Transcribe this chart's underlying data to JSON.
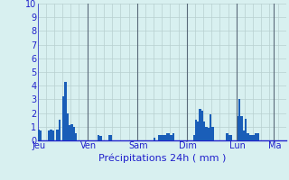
{
  "title": "Précipitations 24h ( mm )",
  "bar_color": "#1a5eb8",
  "background_color": "#d8f0f0",
  "grid_color_h": "#b8d0d0",
  "grid_color_v": "#b8d0d0",
  "day_line_color": "#5a6a7a",
  "axis_color": "#2020cc",
  "text_color": "#2020cc",
  "ylim": [
    0,
    10
  ],
  "yticks": [
    0,
    1,
    2,
    3,
    4,
    5,
    6,
    7,
    8,
    9,
    10
  ],
  "day_labels": [
    "Jeu",
    "Ven",
    "Sam",
    "Dim",
    "Lun",
    "Ma"
  ],
  "day_positions": [
    0,
    24,
    48,
    72,
    96,
    114
  ],
  "n_bars": 120,
  "values": [
    0.8,
    0.7,
    0.0,
    0.0,
    0.0,
    0.7,
    0.8,
    0.7,
    0.0,
    0.8,
    1.5,
    0.0,
    3.2,
    4.3,
    2.0,
    1.1,
    1.2,
    1.0,
    0.5,
    0.0,
    0.0,
    0.0,
    0.0,
    0.0,
    0.0,
    0.0,
    0.0,
    0.0,
    0.0,
    0.4,
    0.3,
    0.0,
    0.0,
    0.0,
    0.4,
    0.4,
    0.0,
    0.0,
    0.0,
    0.0,
    0.0,
    0.0,
    0.0,
    0.0,
    0.0,
    0.0,
    0.0,
    0.0,
    0.0,
    0.0,
    0.0,
    0.0,
    0.0,
    0.0,
    0.0,
    0.0,
    0.2,
    0.0,
    0.4,
    0.4,
    0.4,
    0.4,
    0.5,
    0.5,
    0.4,
    0.5,
    0.0,
    0.0,
    0.0,
    0.0,
    0.0,
    0.0,
    0.0,
    0.0,
    0.0,
    0.4,
    1.5,
    1.4,
    2.3,
    2.2,
    1.4,
    1.0,
    0.9,
    1.9,
    1.0,
    0.0,
    0.0,
    0.0,
    0.0,
    0.0,
    0.0,
    0.5,
    0.4,
    0.4,
    0.0,
    0.0,
    1.8,
    3.0,
    1.8,
    0.7,
    1.6,
    0.5,
    0.4,
    0.4,
    0.4,
    0.5,
    0.5,
    0.0,
    0.0,
    0.0,
    0.0,
    0.0,
    0.0,
    0.0,
    0.0,
    0.0,
    0.0,
    0.0,
    0.0,
    0.0
  ]
}
